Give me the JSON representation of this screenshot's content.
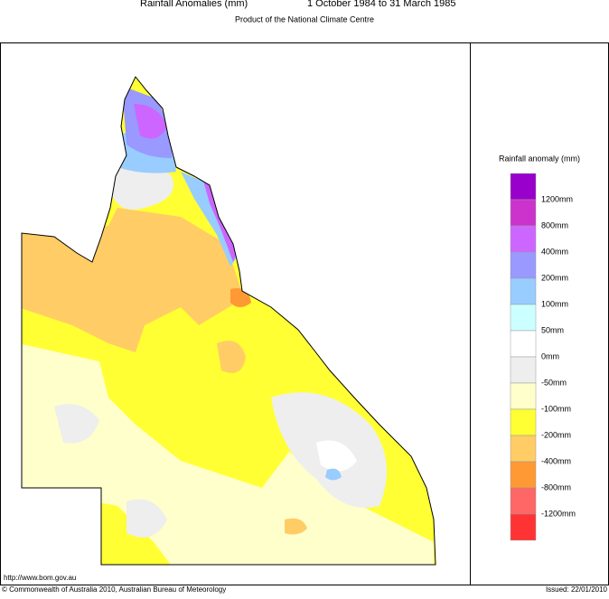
{
  "header": {
    "title": "Rainfall Anomalies (mm)",
    "period": "1 October 1984 to 31 March 1985",
    "subtitle": "Product of the National Climate Centre"
  },
  "legend": {
    "title": "Rainfall anomaly (mm)",
    "swatches": [
      "#9900cc",
      "#cc33cc",
      "#cc66ff",
      "#9999ff",
      "#99ccff",
      "#ccffff",
      "#ffffff",
      "#eeeeee",
      "#ffffcc",
      "#ffff33",
      "#ffcc66",
      "#ff9933",
      "#ff6666",
      "#ff3333"
    ],
    "labels": [
      "1200mm",
      "800mm",
      "400mm",
      "200mm",
      "100mm",
      "50mm",
      "0mm",
      "-50mm",
      "-100mm",
      "-200mm",
      "-400mm",
      "-800mm",
      "-1200mm"
    ]
  },
  "footer": {
    "url": "http://www.bom.gov.au",
    "copyright": "© Commonwealth of Australia 2010, Australian Bureau of Meteorology",
    "issued": "Issued: 22/01/2010"
  }
}
